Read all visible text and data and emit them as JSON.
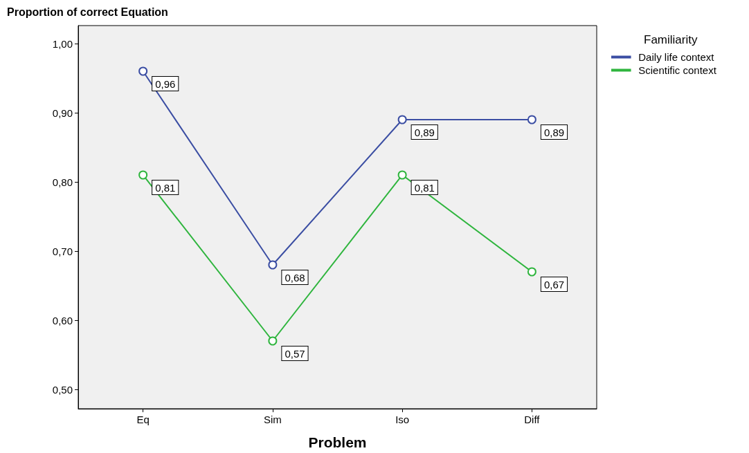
{
  "chart_data": {
    "type": "line",
    "ylabel": "Proportion of correct Equation",
    "xlabel": "Problem",
    "legend_title": "Familiarity",
    "categories": [
      "Eq",
      "Sim",
      "Iso",
      "Diff"
    ],
    "series": [
      {
        "name": "Daily life context",
        "color": "#3b4ea3",
        "values": [
          0.96,
          0.68,
          0.89,
          0.89
        ],
        "value_labels": [
          "0,96",
          "0,68",
          "0,89",
          "0,89"
        ]
      },
      {
        "name": "Scientific context",
        "color": "#2fb53e",
        "values": [
          0.81,
          0.57,
          0.81,
          0.67
        ],
        "value_labels": [
          "0,81",
          "0,57",
          "0,81",
          "0,67"
        ]
      }
    ],
    "ylim": [
      0.472,
      1.026
    ],
    "yticks": [
      {
        "value": 0.5,
        "label": "0,50"
      },
      {
        "value": 0.6,
        "label": "0,60"
      },
      {
        "value": 0.7,
        "label": "0,70"
      },
      {
        "value": 0.8,
        "label": "0,80"
      },
      {
        "value": 0.9,
        "label": "0,90"
      },
      {
        "value": 1.0,
        "label": "1,00"
      }
    ],
    "legend": "top right",
    "grid": false,
    "marker": "circle",
    "line_style": "solid"
  }
}
